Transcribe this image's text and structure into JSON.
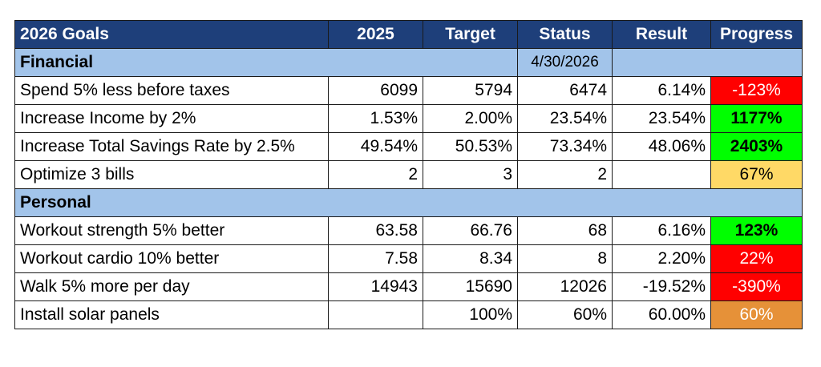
{
  "header": {
    "goals": "2026 Goals",
    "y2025": "2025",
    "target": "Target",
    "status": "Status",
    "result": "Result",
    "progress": "Progress"
  },
  "sections": {
    "financial": {
      "title": "Financial",
      "date": "4/30/2026"
    },
    "personal": {
      "title": "Personal"
    }
  },
  "rows": [
    {
      "goal": "Spend 5% less before taxes",
      "y2025": "6099",
      "target": "5794",
      "status": "6474",
      "result": "6.14%",
      "progress": "-123%",
      "progress_color": "red"
    },
    {
      "goal": "Increase Income by 2%",
      "y2025": "1.53%",
      "target": "2.00%",
      "status": "23.54%",
      "result": "23.54%",
      "progress": "1177%",
      "progress_color": "green"
    },
    {
      "goal": "Increase Total Savings Rate by 2.5%",
      "y2025": "49.54%",
      "target": "50.53%",
      "status": "73.34%",
      "result": "48.06%",
      "progress": "2403%",
      "progress_color": "green"
    },
    {
      "goal": "Optimize 3 bills",
      "y2025": "2",
      "target": "3",
      "status": "2",
      "result": "",
      "progress": "67%",
      "progress_color": "yellow"
    },
    {
      "goal": "Workout strength 5% better",
      "y2025": "63.58",
      "target": "66.76",
      "status": "68",
      "result": "6.16%",
      "progress": "123%",
      "progress_color": "green"
    },
    {
      "goal": "Workout cardio 10% better",
      "y2025": "7.58",
      "target": "8.34",
      "status": "8",
      "result": "2.20%",
      "progress": "22%",
      "progress_color": "red"
    },
    {
      "goal": "Walk 5% more per day",
      "y2025": "14943",
      "target": "15690",
      "status": "12026",
      "result": "-19.52%",
      "progress": "-390%",
      "progress_color": "red"
    },
    {
      "goal": "Install solar panels",
      "y2025": "",
      "target": "100%",
      "status": "60%",
      "result": "60.00%",
      "progress": "60%",
      "progress_color": "orange"
    }
  ],
  "colors": {
    "header_bg": "#1e3f7a",
    "section_bg": "#a2c4ea",
    "red": "#ff0000",
    "green": "#00ff00",
    "yellow": "#ffd966",
    "orange": "#e69138"
  }
}
